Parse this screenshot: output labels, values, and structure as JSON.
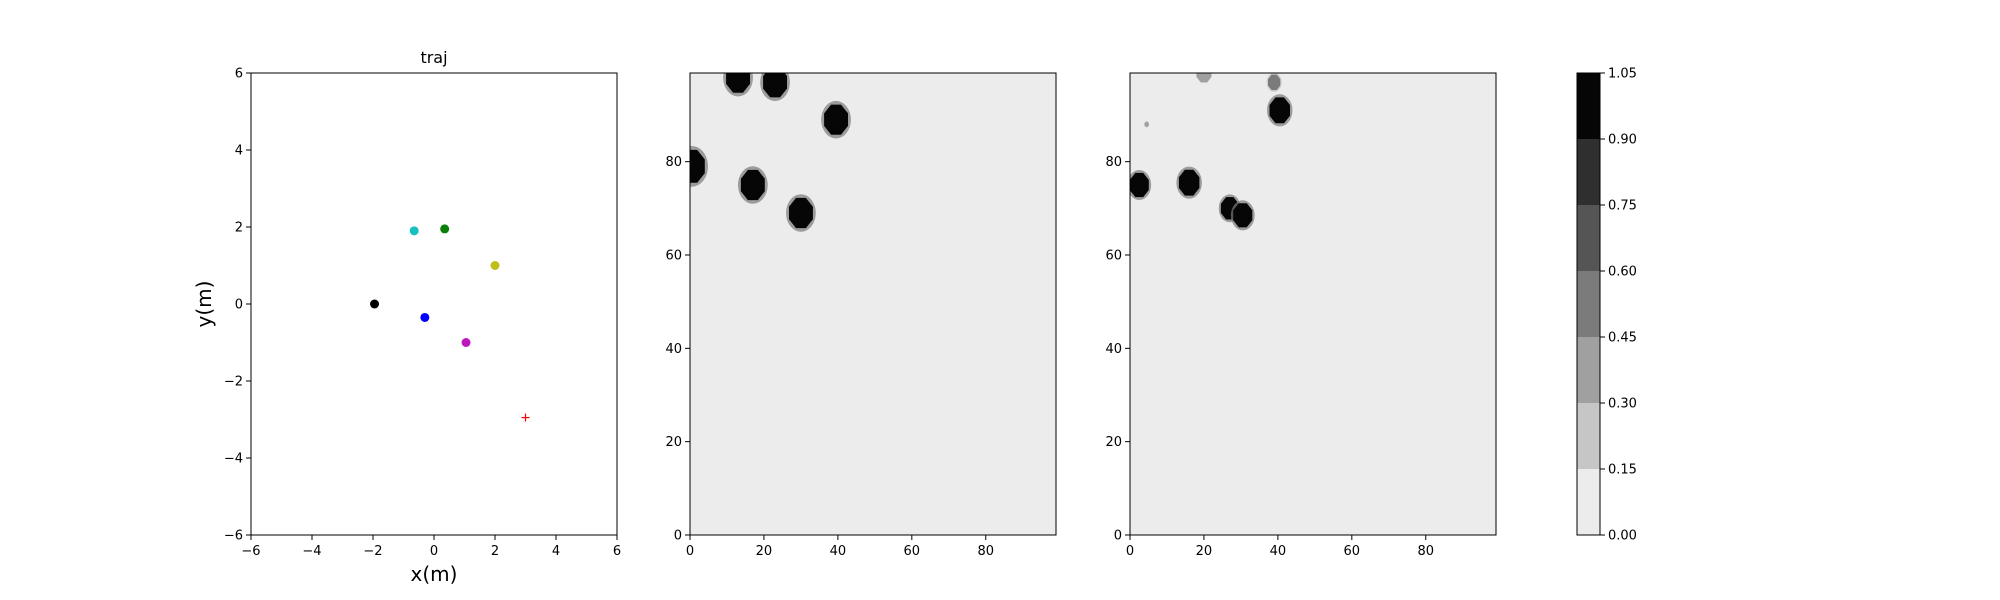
{
  "chart_data": [
    {
      "type": "scatter",
      "title": "traj",
      "xlabel": "x(m)",
      "ylabel": "y(m)",
      "xlim": [
        -6,
        6
      ],
      "ylim": [
        -6,
        6
      ],
      "xticks": [
        "−6",
        "−4",
        "−2",
        "0",
        "2",
        "4",
        "6"
      ],
      "yticks": [
        "−6",
        "−4",
        "−2",
        "0",
        "2",
        "4",
        "6"
      ],
      "grid": false,
      "points": [
        {
          "x": -0.65,
          "y": 1.9,
          "color": "#17bfbf",
          "marker": "circle"
        },
        {
          "x": 0.35,
          "y": 1.95,
          "color": "#0a7f0a",
          "marker": "circle"
        },
        {
          "x": 2.0,
          "y": 1.0,
          "color": "#bfbf17",
          "marker": "circle"
        },
        {
          "x": -1.95,
          "y": 0.0,
          "color": "#000000",
          "marker": "circle"
        },
        {
          "x": -0.3,
          "y": -0.35,
          "color": "#0000ff",
          "marker": "circle"
        },
        {
          "x": 1.05,
          "y": -1.0,
          "color": "#bf17bf",
          "marker": "circle"
        },
        {
          "x": 3.0,
          "y": -2.95,
          "color": "#ff0000",
          "marker": "plus"
        }
      ]
    },
    {
      "type": "heatmap",
      "xlim": [
        0,
        99
      ],
      "ylim": [
        0,
        99
      ],
      "xticks": [
        "0",
        "20",
        "40",
        "60",
        "80"
      ],
      "yticks": [
        "0",
        "20",
        "40",
        "60",
        "80"
      ],
      "background_level": 0.0,
      "blobs": [
        {
          "x": 13,
          "y": 98,
          "r": 3.5,
          "level": 1.0
        },
        {
          "x": 23,
          "y": 97,
          "r": 3.5,
          "level": 1.0
        },
        {
          "x": 39.5,
          "y": 89,
          "r": 3.5,
          "level": 1.0
        },
        {
          "x": 0.5,
          "y": 79,
          "r": 3.8,
          "level": 1.0
        },
        {
          "x": 17,
          "y": 75,
          "r": 3.5,
          "level": 1.0
        },
        {
          "x": 30,
          "y": 69,
          "r": 3.5,
          "level": 1.0
        }
      ]
    },
    {
      "type": "heatmap",
      "xlim": [
        0,
        99
      ],
      "ylim": [
        0,
        99
      ],
      "xticks": [
        "0",
        "20",
        "40",
        "60",
        "80"
      ],
      "yticks": [
        "0",
        "20",
        "40",
        "60",
        "80"
      ],
      "background_level": 0.0,
      "blobs": [
        {
          "x": 20,
          "y": 99,
          "r": 2.2,
          "level": 0.3
        },
        {
          "x": 39,
          "y": 97,
          "r": 1.8,
          "level": 0.5
        },
        {
          "x": 40.5,
          "y": 91,
          "r": 3.0,
          "level": 1.0
        },
        {
          "x": 4.5,
          "y": 88,
          "r": 0.6,
          "level": 0.4
        },
        {
          "x": 2.5,
          "y": 75,
          "r": 2.8,
          "level": 1.0
        },
        {
          "x": 16,
          "y": 75.5,
          "r": 3.0,
          "level": 1.0
        },
        {
          "x": 27,
          "y": 70,
          "r": 2.6,
          "level": 1.0
        },
        {
          "x": 30.5,
          "y": 68.5,
          "r": 2.8,
          "level": 1.0
        }
      ]
    }
  ],
  "colorbar": {
    "levels": [
      0.0,
      0.15,
      0.3,
      0.45,
      0.6,
      0.75,
      0.9,
      1.05
    ],
    "tick_labels": [
      "0.00",
      "0.15",
      "0.30",
      "0.45",
      "0.60",
      "0.75",
      "0.90",
      "1.05"
    ],
    "colors": [
      "#ececec",
      "#c6c6c6",
      "#a0a0a0",
      "#7b7b7b",
      "#555555",
      "#2f2f2f",
      "#060606"
    ]
  }
}
